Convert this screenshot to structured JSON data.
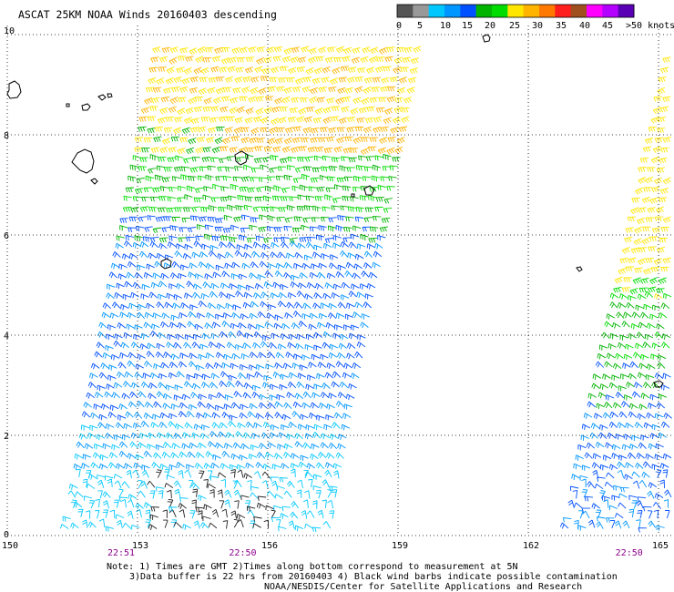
{
  "title": "ASCAT 25KM NOAA Winds 20160403 descending",
  "legend": {
    "colors": [
      "#555555",
      "#999999",
      "#00c8ff",
      "#0096ff",
      "#0050ff",
      "#00b400",
      "#00dc00",
      "#ffe600",
      "#ffb400",
      "#ff7800",
      "#ff1e1e",
      "#a0501e",
      "#ff00ff",
      "#b400ff",
      "#5a00b4"
    ],
    "labels": [
      "0",
      "5",
      "10",
      "15",
      "20",
      "25",
      "30",
      "35",
      "40",
      "45",
      ">50 knots"
    ]
  },
  "axes": {
    "y_ticks": [
      "0",
      "2",
      "4",
      "6",
      "8",
      "10"
    ],
    "x_ticks": [
      "150",
      "153",
      "156",
      "159",
      "162",
      "165"
    ]
  },
  "time_labels": [
    {
      "text": "22:51",
      "lon": 152.6
    },
    {
      "text": "22:50",
      "lon": 155.4
    },
    {
      "text": "22:50",
      "lon": 164.3
    }
  ],
  "notes": [
    "Note: 1) Times are GMT 2)Times along bottom correspond to measurement at 5N",
    "3)Data buffer is 22 hrs from 20160403 4) Black wind barbs indicate possible contamination",
    "NOAA/NESDIS/Center for Satellite Applications and Research"
  ],
  "swaths": [
    {
      "name": "swath-west",
      "corners": [
        [
          153.6,
          10
        ],
        [
          159.7,
          10
        ],
        [
          157.5,
          0
        ],
        [
          151.4,
          0
        ]
      ]
    },
    {
      "name": "swath-east",
      "corners": [
        [
          165.4,
          10
        ],
        [
          166,
          10
        ],
        [
          166,
          0
        ],
        [
          162.9,
          0
        ]
      ]
    }
  ]
}
